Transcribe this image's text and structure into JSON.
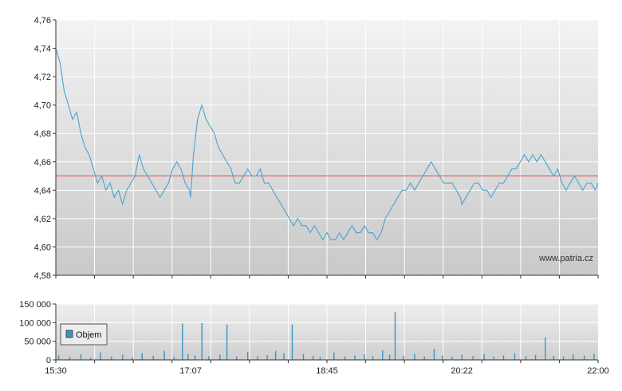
{
  "chart_data": [
    {
      "type": "line",
      "title": "",
      "xlabel": "",
      "ylabel": "",
      "ylim": [
        4.58,
        4.76
      ],
      "y_ticks": [
        "4,58",
        "4,60",
        "4,62",
        "4,64",
        "4,66",
        "4,68",
        "4,70",
        "4,72",
        "4,74",
        "4,76"
      ],
      "x_ticks": [
        "15:30",
        "17:07",
        "18:45",
        "20:22",
        "22:00"
      ],
      "grid": true,
      "reference_line": 4.65,
      "watermark": "www.patria.cz",
      "series": [
        {
          "color": "#4aa3d0",
          "points": [
            [
              "15:30",
              4.74
            ],
            [
              "15:33",
              4.73
            ],
            [
              "15:36",
              4.71
            ],
            [
              "15:39",
              4.7
            ],
            [
              "15:42",
              4.69
            ],
            [
              "15:45",
              4.695
            ],
            [
              "15:48",
              4.68
            ],
            [
              "15:51",
              4.67
            ],
            [
              "15:54",
              4.665
            ],
            [
              "15:57",
              4.655
            ],
            [
              "16:00",
              4.645
            ],
            [
              "16:03",
              4.65
            ],
            [
              "16:06",
              4.64
            ],
            [
              "16:09",
              4.645
            ],
            [
              "16:12",
              4.635
            ],
            [
              "16:15",
              4.64
            ],
            [
              "16:18",
              4.63
            ],
            [
              "16:21",
              4.64
            ],
            [
              "16:24",
              4.645
            ],
            [
              "16:27",
              4.65
            ],
            [
              "16:30",
              4.665
            ],
            [
              "16:33",
              4.655
            ],
            [
              "16:36",
              4.65
            ],
            [
              "16:39",
              4.645
            ],
            [
              "16:42",
              4.64
            ],
            [
              "16:45",
              4.635
            ],
            [
              "16:48",
              4.64
            ],
            [
              "16:51",
              4.645
            ],
            [
              "16:54",
              4.655
            ],
            [
              "16:57",
              4.66
            ],
            [
              "17:00",
              4.655
            ],
            [
              "17:03",
              4.645
            ],
            [
              "17:06",
              4.64
            ],
            [
              "17:07",
              4.635
            ],
            [
              "17:09",
              4.665
            ],
            [
              "17:12",
              4.69
            ],
            [
              "17:15",
              4.7
            ],
            [
              "17:18",
              4.69
            ],
            [
              "17:21",
              4.685
            ],
            [
              "17:24",
              4.68
            ],
            [
              "17:27",
              4.67
            ],
            [
              "17:30",
              4.665
            ],
            [
              "17:33",
              4.66
            ],
            [
              "17:36",
              4.655
            ],
            [
              "17:39",
              4.645
            ],
            [
              "17:42",
              4.645
            ],
            [
              "17:45",
              4.65
            ],
            [
              "17:48",
              4.655
            ],
            [
              "17:51",
              4.65
            ],
            [
              "17:54",
              4.65
            ],
            [
              "17:57",
              4.655
            ],
            [
              "18:00",
              4.645
            ],
            [
              "18:03",
              4.645
            ],
            [
              "18:06",
              4.64
            ],
            [
              "18:09",
              4.635
            ],
            [
              "18:12",
              4.63
            ],
            [
              "18:15",
              4.625
            ],
            [
              "18:18",
              4.62
            ],
            [
              "18:21",
              4.615
            ],
            [
              "18:24",
              4.62
            ],
            [
              "18:27",
              4.615
            ],
            [
              "18:30",
              4.615
            ],
            [
              "18:33",
              4.61
            ],
            [
              "18:36",
              4.615
            ],
            [
              "18:39",
              4.61
            ],
            [
              "18:42",
              4.605
            ],
            [
              "18:45",
              4.61
            ],
            [
              "18:48",
              4.605
            ],
            [
              "18:51",
              4.605
            ],
            [
              "18:54",
              4.61
            ],
            [
              "18:57",
              4.605
            ],
            [
              "19:00",
              4.61
            ],
            [
              "19:03",
              4.615
            ],
            [
              "19:06",
              4.61
            ],
            [
              "19:09",
              4.61
            ],
            [
              "19:12",
              4.615
            ],
            [
              "19:15",
              4.61
            ],
            [
              "19:18",
              4.61
            ],
            [
              "19:21",
              4.605
            ],
            [
              "19:24",
              4.61
            ],
            [
              "19:27",
              4.62
            ],
            [
              "19:30",
              4.625
            ],
            [
              "19:33",
              4.63
            ],
            [
              "19:36",
              4.635
            ],
            [
              "19:39",
              4.64
            ],
            [
              "19:42",
              4.64
            ],
            [
              "19:45",
              4.645
            ],
            [
              "19:48",
              4.64
            ],
            [
              "19:51",
              4.645
            ],
            [
              "19:54",
              4.65
            ],
            [
              "19:57",
              4.655
            ],
            [
              "20:00",
              4.66
            ],
            [
              "20:03",
              4.655
            ],
            [
              "20:06",
              4.65
            ],
            [
              "20:09",
              4.645
            ],
            [
              "20:12",
              4.645
            ],
            [
              "20:15",
              4.645
            ],
            [
              "20:18",
              4.64
            ],
            [
              "20:21",
              4.635
            ],
            [
              "20:22",
              4.63
            ],
            [
              "20:25",
              4.635
            ],
            [
              "20:28",
              4.64
            ],
            [
              "20:31",
              4.645
            ],
            [
              "20:34",
              4.645
            ],
            [
              "20:37",
              4.64
            ],
            [
              "20:40",
              4.64
            ],
            [
              "20:43",
              4.635
            ],
            [
              "20:46",
              4.64
            ],
            [
              "20:49",
              4.645
            ],
            [
              "20:52",
              4.645
            ],
            [
              "20:55",
              4.65
            ],
            [
              "20:58",
              4.655
            ],
            [
              "21:01",
              4.655
            ],
            [
              "21:04",
              4.66
            ],
            [
              "21:07",
              4.665
            ],
            [
              "21:10",
              4.66
            ],
            [
              "21:13",
              4.665
            ],
            [
              "21:16",
              4.66
            ],
            [
              "21:19",
              4.665
            ],
            [
              "21:22",
              4.66
            ],
            [
              "21:25",
              4.655
            ],
            [
              "21:28",
              4.65
            ],
            [
              "21:31",
              4.655
            ],
            [
              "21:34",
              4.645
            ],
            [
              "21:37",
              4.64
            ],
            [
              "21:40",
              4.645
            ],
            [
              "21:43",
              4.65
            ],
            [
              "21:46",
              4.645
            ],
            [
              "21:49",
              4.64
            ],
            [
              "21:52",
              4.645
            ],
            [
              "21:55",
              4.645
            ],
            [
              "21:58",
              4.64
            ],
            [
              "22:00",
              4.645
            ]
          ]
        }
      ]
    },
    {
      "type": "bar",
      "title": "",
      "xlabel": "",
      "ylabel": "",
      "ylim": [
        0,
        150000
      ],
      "y_ticks": [
        "0",
        "50 000",
        "100 000",
        "150 000"
      ],
      "x_ticks": [
        "15:30",
        "17:07",
        "18:45",
        "20:22",
        "22:00"
      ],
      "grid": true,
      "legend": {
        "position": "left",
        "label": "Objem"
      },
      "series": [
        {
          "name": "Objem",
          "color": "#3b93c3",
          "points": [
            [
              "15:32",
              12000
            ],
            [
              "15:40",
              8000
            ],
            [
              "15:48",
              15000
            ],
            [
              "15:55",
              6000
            ],
            [
              "16:02",
              20000
            ],
            [
              "16:10",
              9000
            ],
            [
              "16:18",
              14000
            ],
            [
              "16:25",
              7000
            ],
            [
              "16:32",
              18000
            ],
            [
              "16:40",
              11000
            ],
            [
              "16:48",
              24000
            ],
            [
              "16:55",
              8000
            ],
            [
              "17:01",
              98000
            ],
            [
              "17:05",
              16000
            ],
            [
              "17:10",
              12000
            ],
            [
              "17:15",
              99000
            ],
            [
              "17:20",
              10000
            ],
            [
              "17:28",
              14000
            ],
            [
              "17:33",
              95000
            ],
            [
              "17:40",
              9000
            ],
            [
              "17:48",
              22000
            ],
            [
              "17:55",
              10000
            ],
            [
              "18:02",
              13000
            ],
            [
              "18:08",
              24000
            ],
            [
              "18:14",
              18000
            ],
            [
              "18:20",
              95000
            ],
            [
              "18:28",
              16000
            ],
            [
              "18:35",
              11000
            ],
            [
              "18:40",
              8000
            ],
            [
              "18:50",
              20000
            ],
            [
              "18:58",
              9000
            ],
            [
              "19:05",
              12000
            ],
            [
              "19:12",
              15000
            ],
            [
              "19:18",
              10000
            ],
            [
              "19:25",
              26000
            ],
            [
              "19:30",
              14000
            ],
            [
              "19:34",
              128000
            ],
            [
              "19:40",
              11000
            ],
            [
              "19:48",
              16000
            ],
            [
              "19:55",
              9000
            ],
            [
              "20:02",
              30000
            ],
            [
              "20:08",
              12000
            ],
            [
              "20:15",
              8000
            ],
            [
              "20:22",
              14000
            ],
            [
              "20:30",
              10000
            ],
            [
              "20:38",
              16000
            ],
            [
              "20:45",
              9000
            ],
            [
              "20:52",
              12000
            ],
            [
              "21:00",
              18000
            ],
            [
              "21:08",
              10000
            ],
            [
              "21:15",
              13000
            ],
            [
              "21:22",
              60000
            ],
            [
              "21:28",
              11000
            ],
            [
              "21:35",
              9000
            ],
            [
              "21:42",
              15000
            ],
            [
              "21:50",
              12000
            ],
            [
              "21:57",
              17000
            ]
          ]
        }
      ]
    }
  ]
}
